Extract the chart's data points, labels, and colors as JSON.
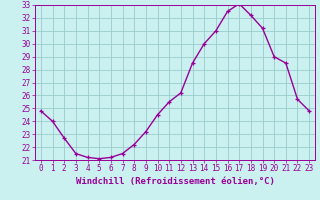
{
  "x": [
    0,
    1,
    2,
    3,
    4,
    5,
    6,
    7,
    8,
    9,
    10,
    11,
    12,
    13,
    14,
    15,
    16,
    17,
    18,
    19,
    20,
    21,
    22,
    23
  ],
  "y": [
    24.8,
    24.0,
    22.7,
    21.5,
    21.2,
    21.1,
    21.2,
    21.5,
    22.2,
    23.2,
    24.5,
    25.5,
    26.2,
    28.5,
    30.0,
    31.0,
    32.5,
    33.1,
    32.2,
    31.2,
    29.0,
    28.5,
    25.7,
    24.8
  ],
  "bg_color": "#caf0f0",
  "line_color": "#990099",
  "grid_color": "#99cccc",
  "xlabel": "Windchill (Refroidissement éolien,°C)",
  "ylim": [
    21,
    33
  ],
  "yticks": [
    21,
    22,
    23,
    24,
    25,
    26,
    27,
    28,
    29,
    30,
    31,
    32,
    33
  ],
  "xticks": [
    0,
    1,
    2,
    3,
    4,
    5,
    6,
    7,
    8,
    9,
    10,
    11,
    12,
    13,
    14,
    15,
    16,
    17,
    18,
    19,
    20,
    21,
    22,
    23
  ],
  "tick_label_size": 5.5,
  "xlabel_size": 6.5,
  "marker_size": 3.5,
  "line_width": 1.0
}
